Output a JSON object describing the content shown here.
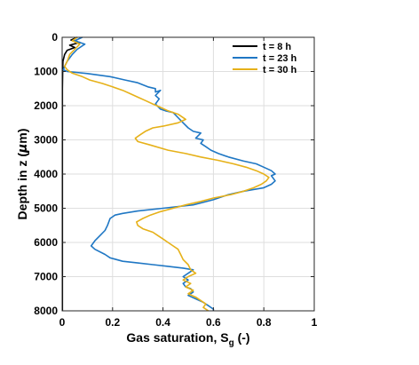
{
  "chart_data": {
    "type": "line",
    "xlabel": "Gas saturation, S",
    "xlabel_sub": "g",
    "xlabel_suffix": " (-)",
    "ylabel": "Depth in z (",
    "ylabel_mu": "μ",
    "ylabel_suffix": "m)",
    "xlim": [
      0,
      1
    ],
    "ylim": [
      0,
      8000
    ],
    "y_reversed": true,
    "grid": true,
    "legend_position": "top-right",
    "xticks": [
      0,
      0.2,
      0.4,
      0.6,
      0.8,
      1
    ],
    "xtick_labels": [
      "0",
      "0.2",
      "0.4",
      "0.6",
      "0.8",
      "1"
    ],
    "yticks": [
      0,
      1000,
      2000,
      3000,
      4000,
      5000,
      6000,
      7000,
      8000
    ],
    "ytick_labels": [
      "0",
      "1000",
      "2000",
      "3000",
      "4000",
      "5000",
      "6000",
      "7000",
      "8000"
    ],
    "series": [
      {
        "name": "t = 8 h",
        "color": "#000000",
        "points": [
          [
            0.06,
            0
          ],
          [
            0.035,
            80
          ],
          [
            0.07,
            150
          ],
          [
            0.03,
            230
          ],
          [
            0.05,
            300
          ],
          [
            0.02,
            380
          ],
          [
            0.01,
            500
          ],
          [
            0.003,
            700
          ],
          [
            0.002,
            1000
          ],
          [
            0.001,
            1500
          ],
          [
            0.001,
            2500
          ],
          [
            0.001,
            4000
          ],
          [
            0.001,
            6000
          ],
          [
            0.001,
            8000
          ]
        ]
      },
      {
        "name": "t = 23 h",
        "color": "#1f77c4",
        "points": [
          [
            0.08,
            0
          ],
          [
            0.05,
            100
          ],
          [
            0.09,
            200
          ],
          [
            0.06,
            350
          ],
          [
            0.04,
            500
          ],
          [
            0.02,
            700
          ],
          [
            0.01,
            850
          ],
          [
            0.005,
            950
          ],
          [
            0.02,
            1000
          ],
          [
            0.1,
            1060
          ],
          [
            0.19,
            1150
          ],
          [
            0.25,
            1250
          ],
          [
            0.3,
            1330
          ],
          [
            0.34,
            1450
          ],
          [
            0.37,
            1500
          ],
          [
            0.37,
            1600
          ],
          [
            0.39,
            1550
          ],
          [
            0.37,
            1700
          ],
          [
            0.385,
            1800
          ],
          [
            0.37,
            1950
          ],
          [
            0.39,
            2100
          ],
          [
            0.41,
            2150
          ],
          [
            0.44,
            2200
          ],
          [
            0.46,
            2350
          ],
          [
            0.48,
            2500
          ],
          [
            0.5,
            2650
          ],
          [
            0.52,
            2750
          ],
          [
            0.55,
            2800
          ],
          [
            0.53,
            2950
          ],
          [
            0.56,
            3000
          ],
          [
            0.55,
            3100
          ],
          [
            0.57,
            3200
          ],
          [
            0.59,
            3300
          ],
          [
            0.62,
            3400
          ],
          [
            0.66,
            3500
          ],
          [
            0.72,
            3620
          ],
          [
            0.77,
            3700
          ],
          [
            0.8,
            3800
          ],
          [
            0.83,
            3900
          ],
          [
            0.845,
            4000
          ],
          [
            0.83,
            4050
          ],
          [
            0.845,
            4200
          ],
          [
            0.83,
            4300
          ],
          [
            0.8,
            4400
          ],
          [
            0.72,
            4500
          ],
          [
            0.66,
            4600
          ],
          [
            0.6,
            4750
          ],
          [
            0.52,
            4900
          ],
          [
            0.4,
            5000
          ],
          [
            0.3,
            5080
          ],
          [
            0.24,
            5150
          ],
          [
            0.21,
            5200
          ],
          [
            0.19,
            5300
          ],
          [
            0.18,
            5500
          ],
          [
            0.17,
            5650
          ],
          [
            0.15,
            5800
          ],
          [
            0.13,
            5950
          ],
          [
            0.115,
            6100
          ],
          [
            0.13,
            6200
          ],
          [
            0.17,
            6350
          ],
          [
            0.19,
            6450
          ],
          [
            0.24,
            6550
          ],
          [
            0.3,
            6600
          ],
          [
            0.36,
            6650
          ],
          [
            0.42,
            6700
          ],
          [
            0.48,
            6750
          ],
          [
            0.52,
            6800
          ],
          [
            0.5,
            6900
          ],
          [
            0.48,
            7000
          ],
          [
            0.5,
            7100
          ],
          [
            0.48,
            7200
          ],
          [
            0.49,
            7300
          ],
          [
            0.51,
            7350
          ],
          [
            0.52,
            7450
          ],
          [
            0.5,
            7550
          ],
          [
            0.53,
            7650
          ],
          [
            0.56,
            7750
          ],
          [
            0.58,
            7850
          ],
          [
            0.6,
            7950
          ],
          [
            0.6,
            8000
          ]
        ]
      },
      {
        "name": "t = 30 h",
        "color": "#e6b119",
        "points": [
          [
            0.06,
            0
          ],
          [
            0.04,
            100
          ],
          [
            0.07,
            200
          ],
          [
            0.05,
            350
          ],
          [
            0.03,
            500
          ],
          [
            0.02,
            700
          ],
          [
            0.01,
            850
          ],
          [
            0.02,
            950
          ],
          [
            0.04,
            1050
          ],
          [
            0.08,
            1150
          ],
          [
            0.11,
            1250
          ],
          [
            0.16,
            1350
          ],
          [
            0.2,
            1450
          ],
          [
            0.24,
            1550
          ],
          [
            0.27,
            1650
          ],
          [
            0.3,
            1750
          ],
          [
            0.33,
            1850
          ],
          [
            0.36,
            1950
          ],
          [
            0.39,
            2050
          ],
          [
            0.42,
            2150
          ],
          [
            0.46,
            2250
          ],
          [
            0.49,
            2400
          ],
          [
            0.46,
            2500
          ],
          [
            0.4,
            2600
          ],
          [
            0.36,
            2650
          ],
          [
            0.33,
            2750
          ],
          [
            0.31,
            2850
          ],
          [
            0.29,
            2950
          ],
          [
            0.3,
            3050
          ],
          [
            0.35,
            3150
          ],
          [
            0.42,
            3300
          ],
          [
            0.49,
            3400
          ],
          [
            0.55,
            3500
          ],
          [
            0.62,
            3600
          ],
          [
            0.68,
            3700
          ],
          [
            0.73,
            3800
          ],
          [
            0.77,
            3900
          ],
          [
            0.8,
            4000
          ],
          [
            0.82,
            4100
          ],
          [
            0.81,
            4200
          ],
          [
            0.79,
            4300
          ],
          [
            0.76,
            4400
          ],
          [
            0.72,
            4500
          ],
          [
            0.67,
            4600
          ],
          [
            0.6,
            4700
          ],
          [
            0.55,
            4800
          ],
          [
            0.49,
            4900
          ],
          [
            0.44,
            5000
          ],
          [
            0.39,
            5100
          ],
          [
            0.35,
            5200
          ],
          [
            0.32,
            5300
          ],
          [
            0.295,
            5400
          ],
          [
            0.3,
            5500
          ],
          [
            0.32,
            5600
          ],
          [
            0.36,
            5700
          ],
          [
            0.38,
            5800
          ],
          [
            0.4,
            5900
          ],
          [
            0.42,
            6000
          ],
          [
            0.44,
            6100
          ],
          [
            0.46,
            6200
          ],
          [
            0.47,
            6350
          ],
          [
            0.48,
            6500
          ],
          [
            0.5,
            6650
          ],
          [
            0.51,
            6800
          ],
          [
            0.53,
            6900
          ],
          [
            0.5,
            7000
          ],
          [
            0.48,
            7100
          ],
          [
            0.51,
            7200
          ],
          [
            0.49,
            7300
          ],
          [
            0.52,
            7400
          ],
          [
            0.5,
            7500
          ],
          [
            0.53,
            7600
          ],
          [
            0.55,
            7700
          ],
          [
            0.57,
            7800
          ],
          [
            0.56,
            7900
          ],
          [
            0.58,
            8000
          ]
        ]
      }
    ]
  }
}
